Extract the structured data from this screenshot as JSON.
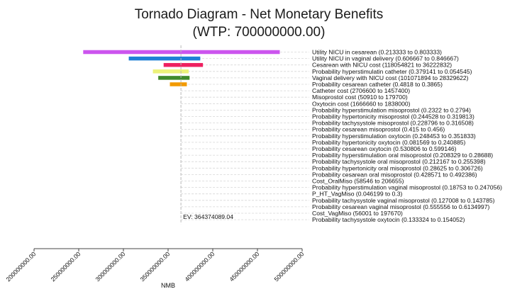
{
  "chart_data": {
    "type": "tornado",
    "title": "Tornado Diagram - Net Monetary Benefits",
    "subtitle": "(WTP: 700000000.00)",
    "xlabel": "NMB",
    "xlim": [
      200000000,
      500000000
    ],
    "x_ticks": [
      200000000,
      250000000,
      300000000,
      350000000,
      400000000,
      450000000,
      500000000
    ],
    "x_tick_labels": [
      "200000000.00",
      "250000000.00",
      "300000000.00",
      "350000000.00",
      "400000000.00",
      "450000000.00",
      "500000000.00"
    ],
    "ev_value": 364374089.04,
    "ev_label": "EV: 364374089.04",
    "bars": [
      {
        "label": "Utility NICU in cesarean (0.213333 to 0.803333)",
        "low": 255000000,
        "high": 475000000,
        "color": "#cc55ee"
      },
      {
        "label": "Utility NICU in vaginal delivery (0.606667 to 0.846667)",
        "low": 306000000,
        "high": 386000000,
        "color": "#1e7fd6"
      },
      {
        "label": "Cesarean with NICU cost (118054821 to 36222832)",
        "low": 345000000,
        "high": 389000000,
        "color": "#ee2060"
      },
      {
        "label": "Probability hyperstimulatin catheter (0.379141 to 0.054545)",
        "low": 333000000,
        "high": 373000000,
        "color": "#ecf27a"
      },
      {
        "label": "Vaginal delivery with NICU cost (101071894 to 28329622)",
        "low": 339000000,
        "high": 374000000,
        "color": "#3f8a2b"
      },
      {
        "label": "Probability cesarean catheter (0.4818 to 0.3865)",
        "low": 352000000,
        "high": 371000000,
        "color": "#f29a00"
      },
      {
        "label": "Catheter cost (2706600 to 1457400)",
        "low": 364374089,
        "high": 364374089,
        "color": "#888888"
      },
      {
        "label": "Misoprostol cost (50910 to 179700)",
        "low": 364374089,
        "high": 364374089,
        "color": "#888888"
      },
      {
        "label": "Oxytocin cost (1666660 to 1838000)",
        "low": 364374089,
        "high": 364374089,
        "color": "#888888"
      },
      {
        "label": "Probability hyperstimulation misoprostol (0.2322 to 0.2794)",
        "low": 364374089,
        "high": 364374089,
        "color": "#888888"
      },
      {
        "label": "Probability hypertonicity misoprostol (0.244528 to 0.319813)",
        "low": 364374089,
        "high": 364374089,
        "color": "#888888"
      },
      {
        "label": "Probability tachysystole misoprostol (0.228796 to 0.316508)",
        "low": 364374089,
        "high": 364374089,
        "color": "#888888"
      },
      {
        "label": "Probability cesarean misoprostol (0.415 to 0.456)",
        "low": 364374089,
        "high": 364374089,
        "color": "#888888"
      },
      {
        "label": "Probability hyperstimulation oxytocin (0.248453 to 0.351833)",
        "low": 364374089,
        "high": 364374089,
        "color": "#888888"
      },
      {
        "label": "Probability hypertonicity oxytocin (0.081569 to 0.240885)",
        "low": 364374089,
        "high": 364374089,
        "color": "#888888"
      },
      {
        "label": "Probability cesarean oxytocin (0.530806 to 0.599146)",
        "low": 364374089,
        "high": 364374089,
        "color": "#888888"
      },
      {
        "label": "Probability hyperstimulation oral misoprostol (0.208329 to 0.28688)",
        "low": 364374089,
        "high": 364374089,
        "color": "#888888"
      },
      {
        "label": "Probability tachysystole oral misoprostol (0.212167 to 0.255398)",
        "low": 364374089,
        "high": 364374089,
        "color": "#888888"
      },
      {
        "label": "Probability hypertonicity oral misoprostol (0.28625 to 0.306726)",
        "low": 364374089,
        "high": 364374089,
        "color": "#888888"
      },
      {
        "label": "Probability cesarean oral misoprostol (0.428571 to 0.492386)",
        "low": 364374089,
        "high": 364374089,
        "color": "#888888"
      },
      {
        "label": "Cost_OralMiso (58546 to 206655)",
        "low": 364374089,
        "high": 364374089,
        "color": "#888888"
      },
      {
        "label": "Probability hyperstimulation vaginal misoprostol (0.18753 to 0.247056)",
        "low": 364374089,
        "high": 364374089,
        "color": "#888888"
      },
      {
        "label": "P_HT_VagMiso (0.046199 to 0.3)",
        "low": 364374089,
        "high": 364374089,
        "color": "#888888"
      },
      {
        "label": "Probability tachysystole vaginal misoprostol (0.127008 to 0.143785)",
        "low": 364374089,
        "high": 364374089,
        "color": "#888888"
      },
      {
        "label": "Probability cesarean vaginal misoprostol (0.555556 to 0.6134997)",
        "low": 364374089,
        "high": 364374089,
        "color": "#888888"
      },
      {
        "label": "Cost_VagMiso (56001 to 197670)",
        "low": 364374089,
        "high": 364374089,
        "color": "#888888"
      },
      {
        "label": "Probability tachysystole oxytocin (0.133324 to 0.154052)",
        "low": 364374089,
        "high": 364374089,
        "color": "#888888"
      }
    ]
  }
}
